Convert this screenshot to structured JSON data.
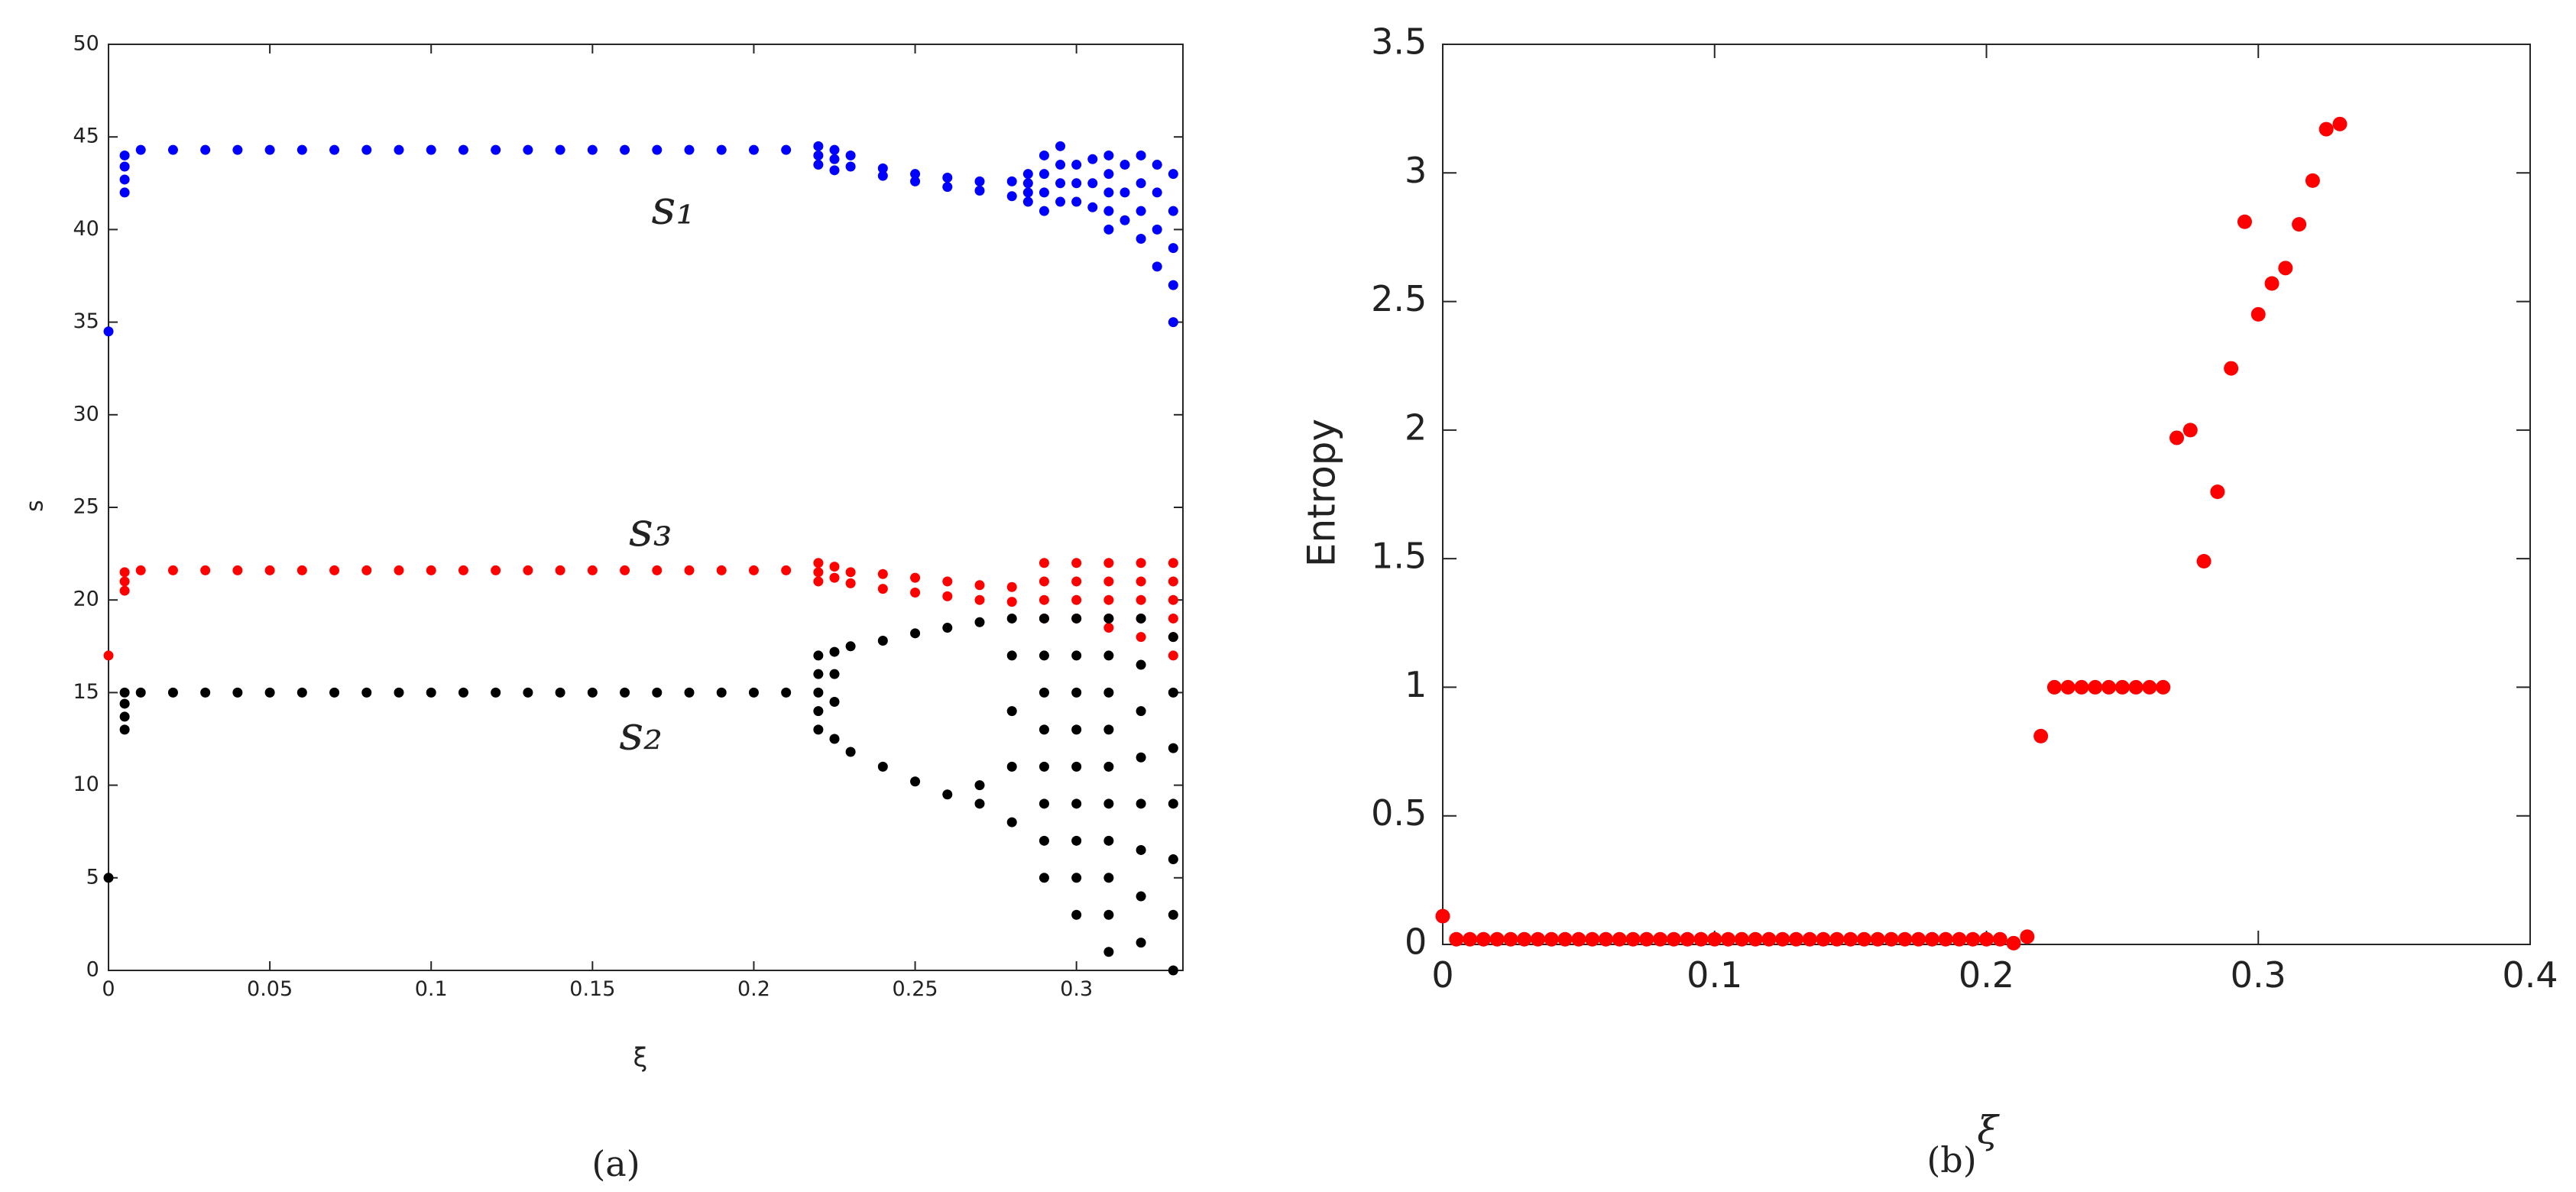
{
  "chart_data": [
    {
      "type": "scatter",
      "panel_label": "(a)",
      "xlabel": "ξ",
      "ylabel": "s",
      "xlim": [
        0,
        0.333
      ],
      "xticks": [
        0,
        0.05,
        0.1,
        0.15,
        0.2,
        0.25,
        0.3
      ],
      "ylim": [
        0,
        50
      ],
      "yticks": [
        0,
        5,
        10,
        15,
        20,
        25,
        30,
        35,
        40,
        45,
        50
      ],
      "grid": false,
      "annotations": [
        "s₁",
        "s₃",
        "s₂"
      ],
      "series": [
        {
          "color": "#0000ff",
          "x": [
            0,
            0.005,
            0.005,
            0.005,
            0.005,
            0.01,
            0.02,
            0.03,
            0.04,
            0.05,
            0.06,
            0.07,
            0.08,
            0.09,
            0.1,
            0.11,
            0.12,
            0.13,
            0.14,
            0.15,
            0.16,
            0.17,
            0.18,
            0.19,
            0.2,
            0.21,
            0.22,
            0.22,
            0.22,
            0.225,
            0.225,
            0.225,
            0.23,
            0.23,
            0.24,
            0.24,
            0.25,
            0.25,
            0.26,
            0.26,
            0.27,
            0.27,
            0.28,
            0.28,
            0.285,
            0.285,
            0.285,
            0.285,
            0.29,
            0.29,
            0.29,
            0.29,
            0.295,
            0.295,
            0.295,
            0.295,
            0.3,
            0.3,
            0.3,
            0.305,
            0.305,
            0.305,
            0.31,
            0.31,
            0.31,
            0.31,
            0.31,
            0.315,
            0.315,
            0.315,
            0.32,
            0.32,
            0.32,
            0.32,
            0.325,
            0.325,
            0.325,
            0.325,
            0.33,
            0.33,
            0.33,
            0.33,
            0.33
          ],
          "values": [
            34.5,
            42,
            42.7,
            43.4,
            44,
            44.3,
            44.3,
            44.3,
            44.3,
            44.3,
            44.3,
            44.3,
            44.3,
            44.3,
            44.3,
            44.3,
            44.3,
            44.3,
            44.3,
            44.3,
            44.3,
            44.3,
            44.3,
            44.3,
            44.3,
            44.3,
            44.5,
            44,
            43.5,
            44.3,
            43.8,
            43.2,
            44,
            43.4,
            43.3,
            42.9,
            43,
            42.6,
            42.8,
            42.3,
            42.6,
            42.1,
            42.6,
            41.8,
            43,
            42.5,
            42,
            41.5,
            44,
            43,
            42,
            41,
            44.5,
            43.5,
            42.5,
            41.5,
            43.5,
            42.5,
            41.5,
            43.8,
            42.5,
            41.2,
            44,
            43,
            42,
            41,
            40,
            43.5,
            42,
            40.5,
            44,
            42.5,
            41,
            39.5,
            43.5,
            42,
            40,
            38,
            43,
            41,
            39,
            37,
            35
          ]
        },
        {
          "color": "#ff0000",
          "x": [
            0,
            0.005,
            0.005,
            0.005,
            0.01,
            0.02,
            0.03,
            0.04,
            0.05,
            0.06,
            0.07,
            0.08,
            0.09,
            0.1,
            0.11,
            0.12,
            0.13,
            0.14,
            0.15,
            0.16,
            0.17,
            0.18,
            0.19,
            0.2,
            0.21,
            0.22,
            0.22,
            0.22,
            0.225,
            0.225,
            0.23,
            0.23,
            0.24,
            0.24,
            0.25,
            0.25,
            0.26,
            0.26,
            0.27,
            0.27,
            0.28,
            0.28,
            0.29,
            0.29,
            0.29,
            0.29,
            0.3,
            0.3,
            0.3,
            0.3,
            0.31,
            0.31,
            0.31,
            0.31,
            0.31,
            0.32,
            0.32,
            0.32,
            0.32,
            0.32,
            0.33,
            0.33,
            0.33,
            0.33,
            0.33,
            0.33
          ],
          "values": [
            17,
            20.5,
            21,
            21.5,
            21.6,
            21.6,
            21.6,
            21.6,
            21.6,
            21.6,
            21.6,
            21.6,
            21.6,
            21.6,
            21.6,
            21.6,
            21.6,
            21.6,
            21.6,
            21.6,
            21.6,
            21.6,
            21.6,
            21.6,
            21.6,
            22,
            21.5,
            21,
            21.8,
            21.2,
            21.5,
            20.9,
            21.4,
            20.6,
            21.2,
            20.4,
            21,
            20.2,
            20.8,
            20,
            20.7,
            19.9,
            22,
            21,
            20,
            19,
            22,
            21,
            20,
            19,
            22,
            21,
            20,
            19,
            18.5,
            22,
            21,
            20,
            19,
            18,
            22,
            21,
            20,
            19,
            18,
            17
          ]
        },
        {
          "color": "#000000",
          "x": [
            0,
            0.005,
            0.005,
            0.005,
            0.005,
            0.01,
            0.02,
            0.03,
            0.04,
            0.05,
            0.06,
            0.07,
            0.08,
            0.09,
            0.1,
            0.11,
            0.12,
            0.13,
            0.14,
            0.15,
            0.16,
            0.17,
            0.18,
            0.19,
            0.2,
            0.21,
            0.22,
            0.22,
            0.22,
            0.22,
            0.22,
            0.225,
            0.225,
            0.225,
            0.225,
            0.23,
            0.23,
            0.24,
            0.24,
            0.25,
            0.25,
            0.26,
            0.26,
            0.27,
            0.27,
            0.27,
            0.28,
            0.28,
            0.28,
            0.28,
            0.28,
            0.29,
            0.29,
            0.29,
            0.29,
            0.29,
            0.29,
            0.29,
            0.29,
            0.3,
            0.3,
            0.3,
            0.3,
            0.3,
            0.3,
            0.3,
            0.3,
            0.3,
            0.31,
            0.31,
            0.31,
            0.31,
            0.31,
            0.31,
            0.31,
            0.31,
            0.31,
            0.31,
            0.32,
            0.32,
            0.32,
            0.32,
            0.32,
            0.32,
            0.32,
            0.32,
            0.33,
            0.33,
            0.33,
            0.33,
            0.33,
            0.33,
            0.33
          ],
          "values": [
            5,
            13,
            13.7,
            14.4,
            15,
            15,
            15,
            15,
            15,
            15,
            15,
            15,
            15,
            15,
            15,
            15,
            15,
            15,
            15,
            15,
            15,
            15,
            15,
            15,
            15,
            15,
            17,
            16,
            15,
            14,
            13,
            17.2,
            16,
            14.5,
            12.5,
            17.5,
            11.8,
            17.8,
            11,
            18.2,
            10.2,
            18.5,
            9.5,
            18.8,
            9,
            10,
            19,
            17,
            14,
            11,
            8,
            19,
            17,
            15,
            13,
            11,
            9,
            7,
            5,
            19,
            17,
            15,
            13,
            11,
            9,
            7,
            5,
            3,
            19,
            17,
            15,
            13,
            11,
            9,
            7,
            5,
            3,
            1,
            19,
            16.5,
            14,
            11.5,
            9,
            6.5,
            4,
            1.5,
            18,
            15,
            12,
            9,
            6,
            3,
            0
          ]
        }
      ]
    },
    {
      "type": "scatter",
      "panel_label": "(b)",
      "xlabel": "ξ",
      "ylabel": "Entropy",
      "xlim": [
        0,
        0.4
      ],
      "xticks": [
        0,
        0.1,
        0.2,
        0.3,
        0.4
      ],
      "ylim": [
        0,
        3.5
      ],
      "yticks": [
        0,
        0.5,
        1,
        1.5,
        2,
        2.5,
        3,
        3.5
      ],
      "grid": false,
      "series": [
        {
          "color": "#ff0000",
          "x": [
            0,
            0.005,
            0.01,
            0.015,
            0.02,
            0.025,
            0.03,
            0.035,
            0.04,
            0.045,
            0.05,
            0.055,
            0.06,
            0.065,
            0.07,
            0.075,
            0.08,
            0.085,
            0.09,
            0.095,
            0.1,
            0.105,
            0.11,
            0.115,
            0.12,
            0.125,
            0.13,
            0.135,
            0.14,
            0.145,
            0.15,
            0.155,
            0.16,
            0.165,
            0.17,
            0.175,
            0.18,
            0.185,
            0.19,
            0.195,
            0.2,
            0.205,
            0.21,
            0.215,
            0.22,
            0.225,
            0.23,
            0.235,
            0.24,
            0.245,
            0.25,
            0.255,
            0.26,
            0.265,
            0.27,
            0.275,
            0.28,
            0.285,
            0.29,
            0.295,
            0.3,
            0.305,
            0.31,
            0.315,
            0.32,
            0.325,
            0.33
          ],
          "values": [
            0.11,
            0.02,
            0.02,
            0.02,
            0.02,
            0.02,
            0.02,
            0.02,
            0.02,
            0.02,
            0.02,
            0.02,
            0.02,
            0.02,
            0.02,
            0.02,
            0.02,
            0.02,
            0.02,
            0.02,
            0.02,
            0.02,
            0.02,
            0.02,
            0.02,
            0.02,
            0.02,
            0.02,
            0.02,
            0.02,
            0.02,
            0.02,
            0.02,
            0.02,
            0.02,
            0.02,
            0.02,
            0.02,
            0.02,
            0.02,
            0.02,
            0.02,
            0.005,
            0.03,
            0.81,
            1,
            1,
            1,
            1,
            1,
            1,
            1,
            1,
            1,
            1.97,
            2,
            1.49,
            1.76,
            2.24,
            2.81,
            2.45,
            2.57,
            2.63,
            2.8,
            2.97,
            3.17,
            3.19
          ]
        }
      ]
    }
  ]
}
